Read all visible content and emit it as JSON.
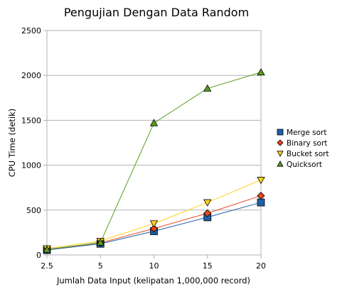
{
  "chart_data": {
    "type": "line",
    "title": "Pengujian Dengan Data Random",
    "xlabel": "Jumlah Data Input (kelipatan 1,000,000 record)",
    "ylabel": "CPU Time (detik)",
    "categories": [
      "2.5",
      "5",
      "10",
      "15",
      "20"
    ],
    "ylim": [
      0,
      2500
    ],
    "yticks": [
      0,
      500,
      1000,
      1500,
      2000,
      2500
    ],
    "grid": "y-major",
    "legend_position": "right",
    "series": [
      {
        "name": "Merge sort",
        "values": [
          55,
          125,
          265,
          420,
          585
        ],
        "color": "#1f5fa6",
        "marker": "square"
      },
      {
        "name": "Binary sort",
        "values": [
          62,
          135,
          295,
          465,
          660
        ],
        "color": "#e8451e",
        "marker": "diamond"
      },
      {
        "name": "Bucket sort",
        "values": [
          72,
          155,
          350,
          585,
          835
        ],
        "color": "#ffd320",
        "marker": "triangle-down"
      },
      {
        "name": "Quicksort",
        "values": [
          60,
          140,
          1470,
          1855,
          2035
        ],
        "color": "#579d1c",
        "marker": "triangle-up"
      }
    ]
  }
}
